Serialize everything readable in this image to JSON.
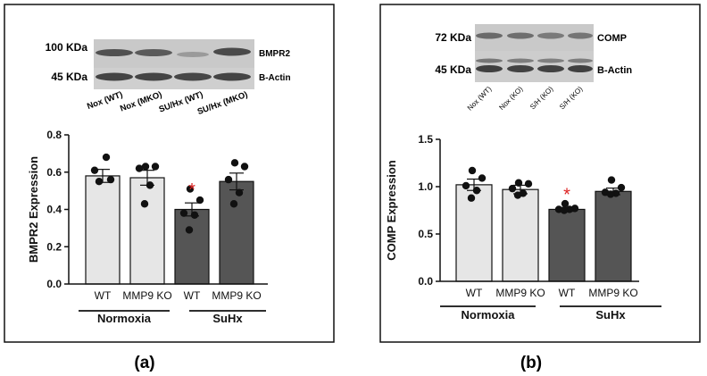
{
  "panels": [
    {
      "panel_label": "(a)",
      "blot": {
        "marker_top": "100 KDa",
        "marker_bottom": "45 KDa",
        "band_top": "BMPR2",
        "band_bottom": "B-Actin",
        "lanes": [
          "Nox (WT)",
          "Nox (MKO)",
          "SU/Hx (WT)",
          "SU/Hx (MKO)"
        ]
      },
      "groups": [
        "Normoxia",
        "SuHx"
      ],
      "chart_data": {
        "type": "bar",
        "title": "",
        "xlabel": "",
        "ylabel": "BMPR2 Expression",
        "categories": [
          "WT",
          "MMP9 KO",
          "WT",
          "MMP9 KO"
        ],
        "values": [
          0.58,
          0.57,
          0.4,
          0.55
        ],
        "errors": [
          0.035,
          0.04,
          0.035,
          0.045
        ],
        "points": [
          [
            0.68,
            0.61,
            0.56,
            0.55
          ],
          [
            0.63,
            0.63,
            0.62,
            0.53,
            0.43
          ],
          [
            0.51,
            0.45,
            0.38,
            0.37,
            0.29
          ],
          [
            0.65,
            0.63,
            0.56,
            0.49,
            0.43
          ]
        ],
        "bar_colors": [
          "#e6e6e6",
          "#e6e6e6",
          "#555555",
          "#555555"
        ],
        "significance": [
          "",
          "",
          "*",
          ""
        ],
        "significance_color": "#dd2222",
        "ylim": [
          0,
          0.8
        ],
        "yticks": [
          "0.0",
          "0.2",
          "0.4",
          "0.6",
          "0.8"
        ]
      }
    },
    {
      "panel_label": "(b)",
      "blot": {
        "marker_top": "72 KDa",
        "marker_bottom": "45 KDa",
        "band_top": "COMP",
        "band_bottom": "B-Actin",
        "lanes": [
          "Nox (WT)",
          "Nox (KO)",
          "S/H (KO)",
          "S/H (KO)"
        ]
      },
      "groups": [
        "Normoxia",
        "SuHx"
      ],
      "chart_data": {
        "type": "bar",
        "title": "",
        "xlabel": "",
        "ylabel": "COMP Expression",
        "categories": [
          "WT",
          "MMP9 KO",
          "WT",
          "MMP9 KO"
        ],
        "values": [
          1.02,
          0.97,
          0.76,
          0.95
        ],
        "errors": [
          0.06,
          0.045,
          0.02,
          0.035
        ],
        "points": [
          [
            1.17,
            1.09,
            1.01,
            0.96,
            0.88
          ],
          [
            1.04,
            1.03,
            0.98,
            0.93,
            0.91
          ],
          [
            0.82,
            0.77,
            0.76,
            0.76,
            0.75
          ],
          [
            1.07,
            0.99,
            0.94,
            0.93,
            0.92
          ]
        ],
        "bar_colors": [
          "#e6e6e6",
          "#e6e6e6",
          "#555555",
          "#555555"
        ],
        "significance": [
          "",
          "",
          "*",
          ""
        ],
        "significance_color": "#dd2222",
        "ylim": [
          0,
          1.5
        ],
        "yticks": [
          "0.0",
          "0.5",
          "1.0",
          "1.5"
        ]
      }
    }
  ]
}
